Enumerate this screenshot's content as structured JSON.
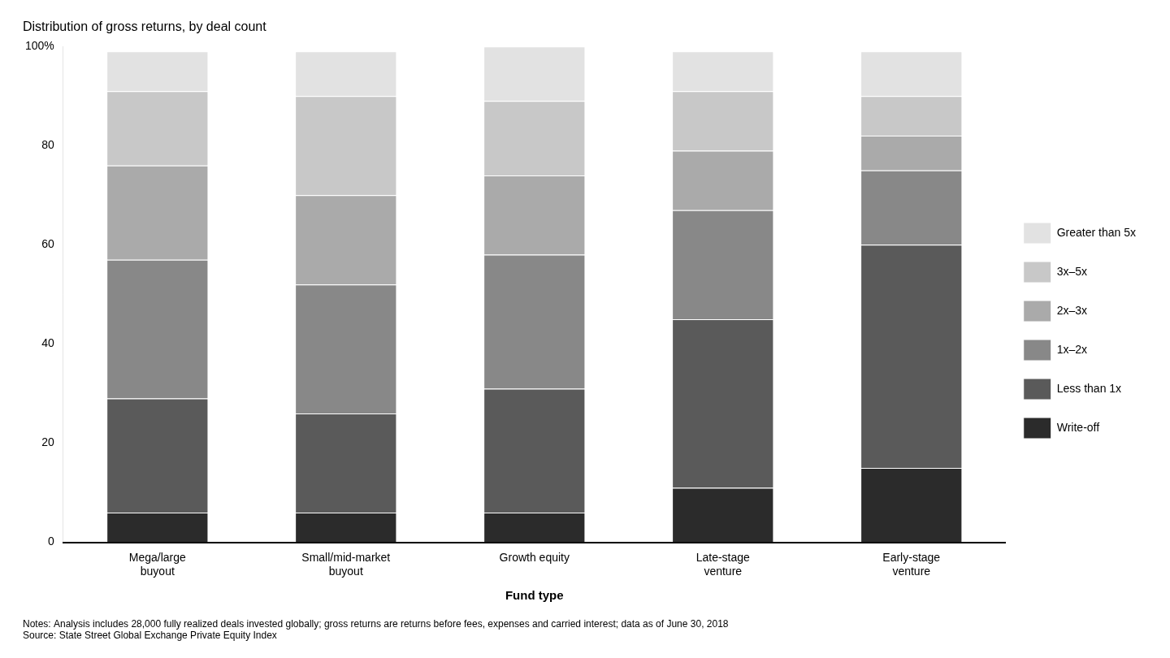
{
  "chart_data": {
    "type": "bar",
    "title": "Distribution of gross returns, by deal count",
    "xlabel": "Fund type",
    "categories": [
      "Mega/large\nbuyout",
      "Small/mid-market\nbuyout",
      "Growth equity",
      "Late-stage\nventure",
      "Early-stage\nventure"
    ],
    "series": [
      {
        "name": "Write-off",
        "color": "#2b2b2b",
        "values": [
          6,
          6,
          6,
          11,
          15
        ]
      },
      {
        "name": "Less than 1x",
        "color": "#5a5a5a",
        "values": [
          23,
          20,
          25,
          34,
          45
        ]
      },
      {
        "name": "1x–2x",
        "color": "#888888",
        "values": [
          28,
          26,
          27,
          22,
          15
        ]
      },
      {
        "name": "2x–3x",
        "color": "#aaaaaa",
        "values": [
          19,
          18,
          16,
          12,
          7
        ]
      },
      {
        "name": "3x–5x",
        "color": "#c8c8c8",
        "values": [
          15,
          20,
          15,
          12,
          8
        ]
      },
      {
        "name": "Greater than 5x",
        "color": "#e2e2e2",
        "values": [
          8,
          9,
          11,
          8,
          9
        ]
      }
    ],
    "annotations": [
      "Notes: Analysis includes 28,000 fully realized deals invested globally; gross returns are returns before fees, expenses and carried interest; data as of June 30, 2018",
      "Source: State Street Global Exchange Private Equity Index"
    ],
    "ylim": [
      0,
      100
    ],
    "yticks": [
      0,
      20,
      40,
      60,
      80,
      {
        "value": 100,
        "label": "100%"
      }
    ],
    "stacked": true,
    "grid": false,
    "legend": "right"
  }
}
